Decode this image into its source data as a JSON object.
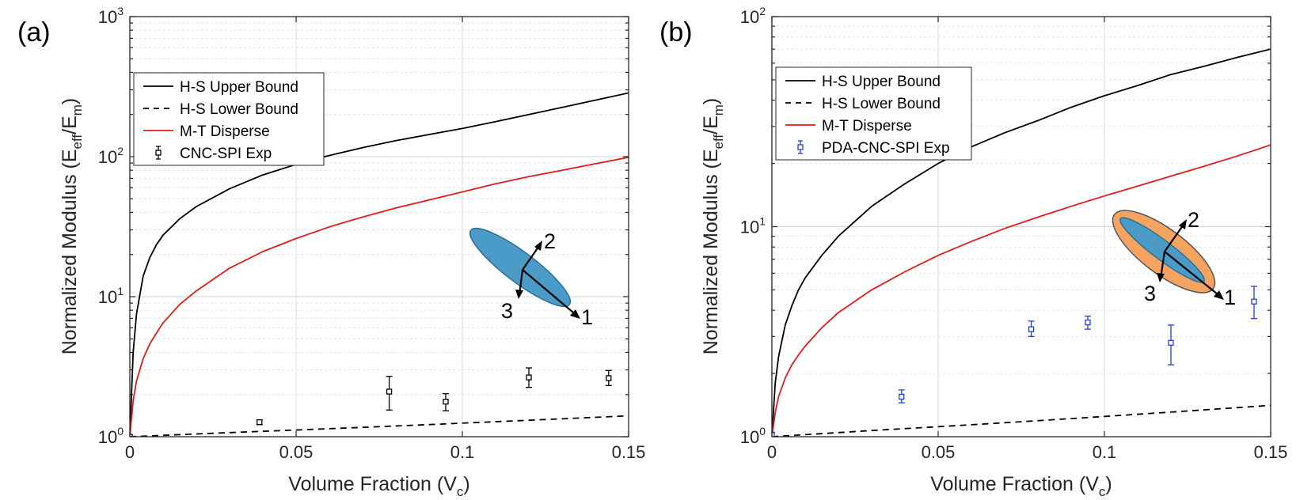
{
  "chart_data": [
    {
      "panel_label": "(a)",
      "type": "line",
      "yscale": "log",
      "xlim": [
        0,
        0.15
      ],
      "ylim": [
        1,
        1000
      ],
      "x_ticks": [
        0,
        0.05,
        0.1,
        0.15
      ],
      "x_tick_labels": [
        "0",
        "0.05",
        "0.1",
        "0.15"
      ],
      "y_ticks": [
        {
          "base": "10",
          "exp": "0",
          "value": 1
        },
        {
          "base": "10",
          "exp": "1",
          "value": 10
        },
        {
          "base": "10",
          "exp": "2",
          "value": 100
        },
        {
          "base": "10",
          "exp": "3",
          "value": 1000
        }
      ],
      "grid": true,
      "xlabel": {
        "main": "Volume Fraction (V",
        "sub": "c",
        "end": ")"
      },
      "ylabel": {
        "main": "Normalized Modulus (E",
        "sub1": "eff",
        "mid": "/E",
        "sub2": "m",
        "end": ")"
      },
      "legend_position": "top-left",
      "series": [
        {
          "name": "H-S Upper Bound",
          "style": "solid",
          "color": "#000000",
          "x": [
            0,
            0.001,
            0.002,
            0.004,
            0.006,
            0.008,
            0.01,
            0.015,
            0.02,
            0.03,
            0.04,
            0.05,
            0.06,
            0.07,
            0.08,
            0.09,
            0.1,
            0.11,
            0.12,
            0.13,
            0.14,
            0.15
          ],
          "y": [
            1,
            4,
            7.5,
            14,
            19,
            23.5,
            27.5,
            36,
            44,
            59,
            74,
            88,
            102,
            116,
            130,
            144,
            159,
            178,
            200,
            225,
            253,
            285
          ]
        },
        {
          "name": "H-S Lower Bound",
          "style": "dashed",
          "color": "#000000",
          "x": [
            0,
            0.03,
            0.06,
            0.09,
            0.12,
            0.15
          ],
          "y": [
            1,
            1.07,
            1.14,
            1.22,
            1.31,
            1.41
          ]
        },
        {
          "name": "M-T Disperse",
          "style": "solid",
          "color": "#e31a1c",
          "x": [
            0,
            0.001,
            0.002,
            0.004,
            0.006,
            0.008,
            0.01,
            0.015,
            0.02,
            0.03,
            0.04,
            0.05,
            0.06,
            0.07,
            0.08,
            0.09,
            0.1,
            0.11,
            0.12,
            0.13,
            0.14,
            0.15
          ],
          "y": [
            1,
            1.8,
            2.5,
            3.6,
            4.6,
            5.5,
            6.5,
            8.8,
            11,
            16,
            21,
            26,
            31.5,
            37,
            43,
            49,
            56,
            64,
            72,
            80,
            89,
            99
          ]
        },
        {
          "name": "CNC-SPI Exp",
          "style": "errorbar",
          "color": "#000000",
          "x": [
            0,
            0.039,
            0.078,
            0.095,
            0.12,
            0.144
          ],
          "y": [
            1,
            1.27,
            2.1,
            1.78,
            2.65,
            2.62
          ],
          "err_low": [
            0.01,
            0.05,
            0.55,
            0.25,
            0.4,
            0.3
          ],
          "err_high": [
            0.01,
            0.05,
            0.6,
            0.25,
            0.45,
            0.35
          ]
        }
      ],
      "inset_labels": [
        "1",
        "2",
        "3"
      ]
    },
    {
      "panel_label": "(b)",
      "type": "line",
      "yscale": "log",
      "xlim": [
        0,
        0.15
      ],
      "ylim": [
        1,
        100
      ],
      "x_ticks": [
        0,
        0.05,
        0.1,
        0.15
      ],
      "x_tick_labels": [
        "0",
        "0.05",
        "0.1",
        "0.15"
      ],
      "y_ticks": [
        {
          "base": "10",
          "exp": "0",
          "value": 1
        },
        {
          "base": "10",
          "exp": "1",
          "value": 10
        },
        {
          "base": "10",
          "exp": "2",
          "value": 100
        }
      ],
      "grid": true,
      "xlabel": {
        "main": "Volume Fraction (V",
        "sub": "c",
        "end": ")"
      },
      "ylabel": {
        "main": "Normalized Modulus (E",
        "sub1": "eff",
        "mid": "/E",
        "sub2": "m",
        "end": ")"
      },
      "legend_position": "top-left",
      "series": [
        {
          "name": "H-S Upper Bound",
          "style": "solid",
          "color": "#000000",
          "x": [
            0,
            0.001,
            0.002,
            0.004,
            0.006,
            0.008,
            0.01,
            0.015,
            0.02,
            0.03,
            0.04,
            0.05,
            0.06,
            0.07,
            0.08,
            0.09,
            0.1,
            0.11,
            0.12,
            0.13,
            0.14,
            0.15
          ],
          "y": [
            1,
            1.8,
            2.4,
            3.4,
            4.2,
            5,
            5.7,
            7.3,
            9,
            12.5,
            16,
            20,
            24,
            28,
            32,
            37,
            42,
            47,
            53,
            58,
            64,
            70
          ]
        },
        {
          "name": "H-S Lower Bound",
          "style": "dashed",
          "color": "#000000",
          "x": [
            0,
            0.03,
            0.06,
            0.09,
            0.12,
            0.15
          ],
          "y": [
            1,
            1.07,
            1.14,
            1.22,
            1.31,
            1.41
          ]
        },
        {
          "name": "M-T Disperse",
          "style": "solid",
          "color": "#e31a1c",
          "x": [
            0,
            0.001,
            0.002,
            0.004,
            0.006,
            0.008,
            0.01,
            0.015,
            0.02,
            0.03,
            0.04,
            0.05,
            0.06,
            0.07,
            0.08,
            0.09,
            0.1,
            0.11,
            0.12,
            0.13,
            0.14,
            0.15
          ],
          "y": [
            1,
            1.3,
            1.55,
            1.9,
            2.2,
            2.45,
            2.7,
            3.3,
            3.9,
            5,
            6.1,
            7.3,
            8.5,
            9.8,
            11.1,
            12.5,
            14,
            15.6,
            17.4,
            19.4,
            21.7,
            24.5
          ]
        },
        {
          "name": "PDA-CNC-SPI Exp",
          "style": "errorbar",
          "color": "#1f3fd1",
          "x": [
            0,
            0.039,
            0.078,
            0.095,
            0.12,
            0.145
          ],
          "y": [
            1.02,
            1.55,
            3.25,
            3.5,
            2.8,
            4.4
          ],
          "err_low": [
            0.03,
            0.1,
            0.25,
            0.25,
            0.6,
            0.75
          ],
          "err_high": [
            0.03,
            0.12,
            0.3,
            0.25,
            0.6,
            0.8
          ]
        }
      ],
      "inset_labels": [
        "1",
        "2",
        "3"
      ]
    }
  ]
}
